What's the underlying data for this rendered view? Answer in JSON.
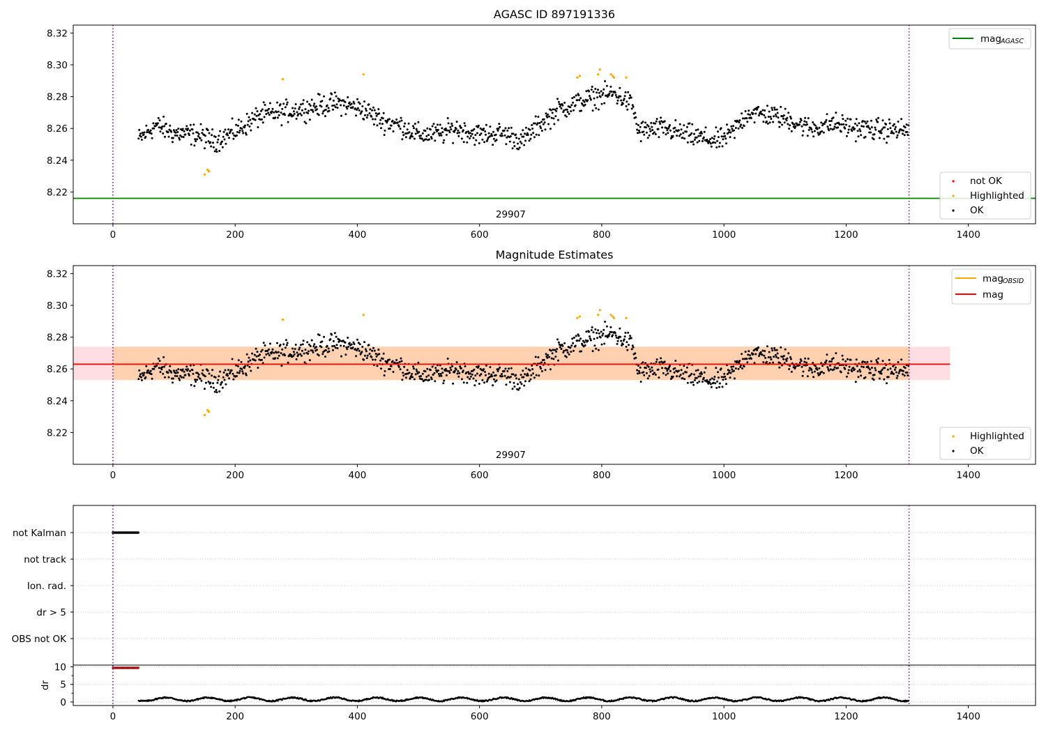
{
  "chart_data": [
    {
      "type": "scatter",
      "id": "top",
      "title": "AGASC ID 897191336",
      "xlim": [
        -65,
        1510
      ],
      "ylim": [
        8.2,
        8.325
      ],
      "xticks": [
        0,
        200,
        400,
        600,
        800,
        1000,
        1200,
        1400
      ],
      "yticks": [
        8.22,
        8.24,
        8.26,
        8.28,
        8.3,
        8.32
      ],
      "mag_agasc": 8.216,
      "obs_boundaries": [
        0,
        1303
      ],
      "annotation": {
        "text": "29907",
        "x": 651
      },
      "legend_lines": [
        {
          "label": "mag",
          "sub": "AGASC",
          "color": "#008000"
        }
      ],
      "legend_points": [
        {
          "label": "not OK",
          "color": "#ff0000"
        },
        {
          "label": "Highlighted",
          "color": "#ffa500"
        },
        {
          "label": "OK",
          "color": "#000000"
        }
      ],
      "highlighted_points": [
        [
          150,
          8.231
        ],
        [
          155,
          8.234
        ],
        [
          157,
          8.233
        ],
        [
          278,
          8.291
        ],
        [
          410,
          8.294
        ],
        [
          760,
          8.292
        ],
        [
          764,
          8.293
        ],
        [
          794,
          8.294
        ],
        [
          797,
          8.297
        ],
        [
          815,
          8.294
        ],
        [
          818,
          8.293
        ],
        [
          820,
          8.292
        ],
        [
          840,
          8.292
        ]
      ],
      "ok_trend": [
        [
          42,
          8.253
        ],
        [
          70,
          8.262
        ],
        [
          100,
          8.257
        ],
        [
          140,
          8.256
        ],
        [
          165,
          8.252
        ],
        [
          200,
          8.258
        ],
        [
          240,
          8.268
        ],
        [
          275,
          8.27
        ],
        [
          320,
          8.273
        ],
        [
          370,
          8.276
        ],
        [
          410,
          8.272
        ],
        [
          440,
          8.265
        ],
        [
          470,
          8.262
        ],
        [
          500,
          8.256
        ],
        [
          540,
          8.257
        ],
        [
          560,
          8.26
        ],
        [
          600,
          8.256
        ],
        [
          640,
          8.257
        ],
        [
          670,
          8.252
        ],
        [
          700,
          8.263
        ],
        [
          730,
          8.272
        ],
        [
          760,
          8.276
        ],
        [
          790,
          8.28
        ],
        [
          820,
          8.282
        ],
        [
          850,
          8.275
        ],
        [
          860,
          8.258
        ],
        [
          900,
          8.26
        ],
        [
          950,
          8.255
        ],
        [
          990,
          8.252
        ],
        [
          1010,
          8.256
        ],
        [
          1040,
          8.27
        ],
        [
          1080,
          8.268
        ],
        [
          1110,
          8.265
        ],
        [
          1140,
          8.26
        ],
        [
          1180,
          8.263
        ],
        [
          1220,
          8.26
        ],
        [
          1260,
          8.259
        ],
        [
          1303,
          8.259
        ]
      ]
    },
    {
      "type": "scatter",
      "id": "middle",
      "title": "Magnitude Estimates",
      "xlim": [
        -65,
        1510
      ],
      "ylim": [
        8.2,
        8.325
      ],
      "xticks": [
        0,
        200,
        400,
        600,
        800,
        1000,
        1200,
        1400
      ],
      "yticks": [
        8.22,
        8.24,
        8.26,
        8.28,
        8.3,
        8.32
      ],
      "mag": 8.263,
      "mag_band": [
        8.253,
        8.274
      ],
      "band_x": [
        -65,
        1370
      ],
      "obs_boundaries": [
        0,
        1303
      ],
      "annotation": {
        "text": "29907",
        "x": 651
      },
      "legend_lines": [
        {
          "label": "mag",
          "sub": "OBSID",
          "color": "#ffa500"
        },
        {
          "label": "mag",
          "sub": "",
          "color": "#ff0000"
        }
      ],
      "legend_points": [
        {
          "label": "Highlighted",
          "color": "#ffa500"
        },
        {
          "label": "OK",
          "color": "#000000"
        }
      ]
    },
    {
      "type": "scatter",
      "id": "flags",
      "xlim": [
        -65,
        1510
      ],
      "categories": [
        "not Kalman",
        "not track",
        "Ion. rad.",
        "dr > 5",
        "OBS not OK"
      ],
      "flag_points": {
        "category": "not Kalman",
        "x_range": [
          0,
          42
        ]
      },
      "obs_boundaries": [
        0,
        1303
      ]
    },
    {
      "type": "scatter",
      "id": "dr",
      "ylabel": "dr",
      "xlim": [
        -65,
        1510
      ],
      "ylim": [
        -1,
        10.5
      ],
      "yticks": [
        0,
        5,
        10
      ],
      "xticks": [
        0,
        200,
        400,
        600,
        800,
        1000,
        1200,
        1400
      ],
      "high_dr_points": {
        "x_range": [
          0,
          42
        ],
        "value": 9.7
      },
      "obs_boundaries": [
        0,
        1303
      ]
    }
  ]
}
